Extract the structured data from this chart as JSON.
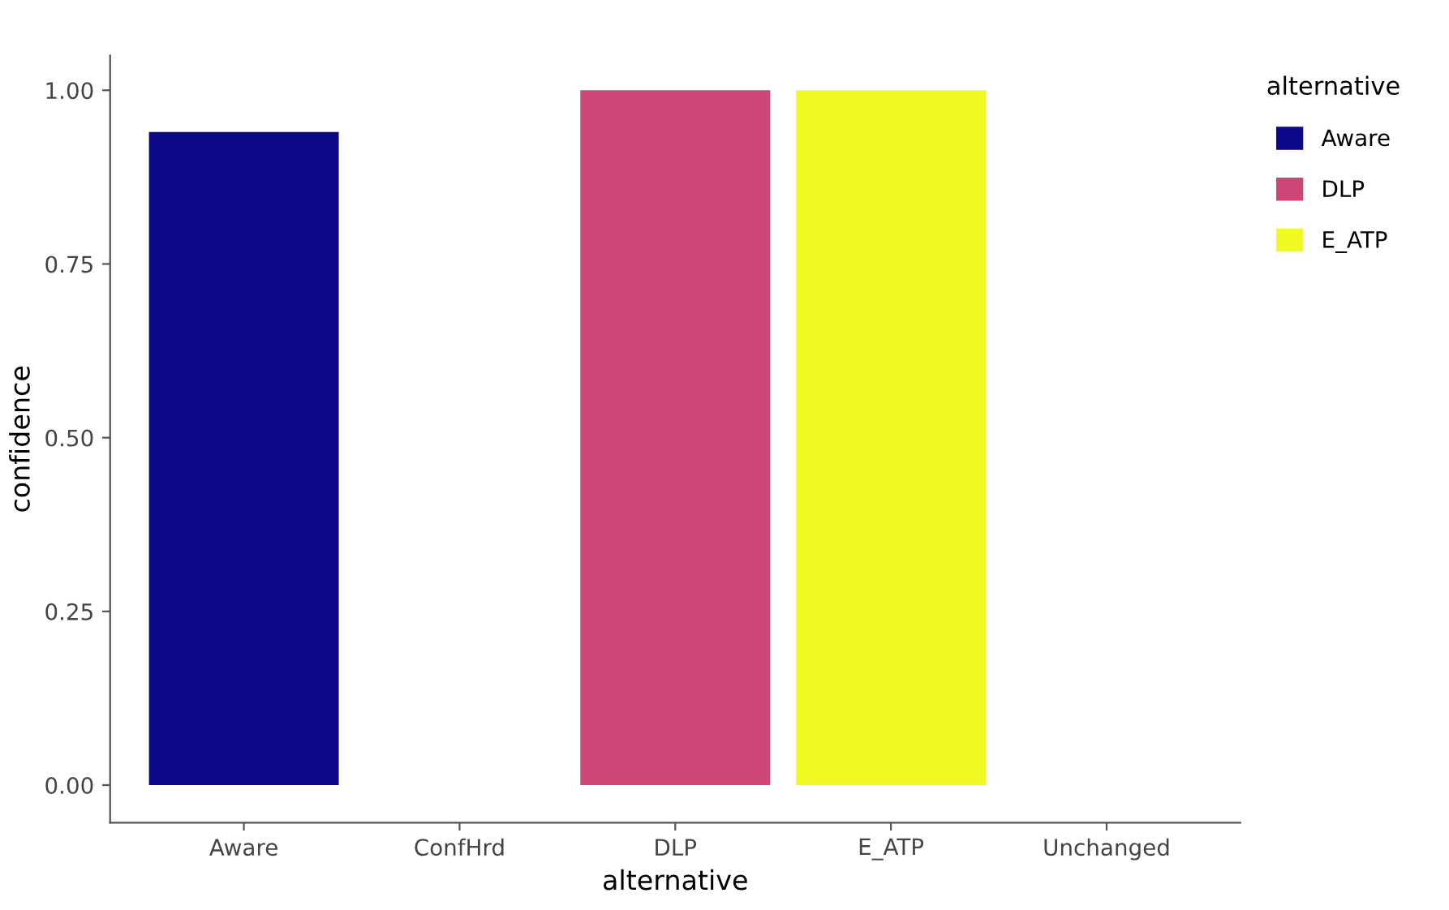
{
  "chart_data": {
    "type": "bar",
    "xlabel": "alternative",
    "ylabel": "confidence",
    "legend_title": "alternative",
    "categories": [
      "Aware",
      "ConfHrd",
      "DLP",
      "E_ATP",
      "Unchanged"
    ],
    "series": [
      {
        "name": "Aware",
        "color": "#0d0887",
        "values": [
          0.94,
          null,
          null,
          null,
          null
        ]
      },
      {
        "name": "DLP",
        "color": "#cc4778",
        "values": [
          null,
          null,
          1.0,
          null,
          null
        ]
      },
      {
        "name": "E_ATP",
        "color": "#f0f921",
        "values": [
          null,
          null,
          null,
          1.0,
          null
        ]
      }
    ],
    "ylim": [
      -0.054,
      1.05
    ],
    "yticks": [
      {
        "value": 0,
        "label": "0.00"
      },
      {
        "value": 0.25,
        "label": "0.25"
      },
      {
        "value": 0.5,
        "label": "0.50"
      },
      {
        "value": 0.75,
        "label": "0.75"
      },
      {
        "value": 1,
        "label": "1.00"
      }
    ],
    "grid": false,
    "legend": "right"
  }
}
